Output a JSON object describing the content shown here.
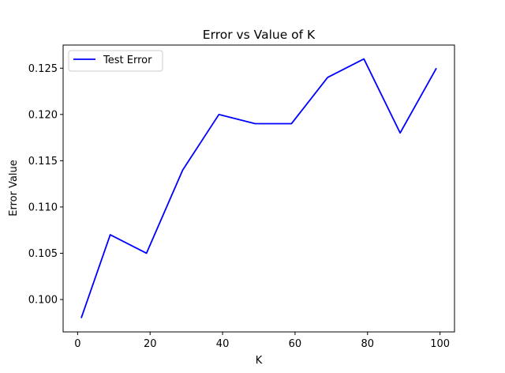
{
  "chart_data": {
    "type": "line",
    "title": "Error vs Value of K",
    "xlabel": "K",
    "ylabel": "Error Value",
    "xlim": [
      -4,
      104
    ],
    "ylim": [
      0.0965,
      0.1275
    ],
    "xticks": [
      0,
      20,
      40,
      60,
      80,
      100
    ],
    "yticks": [
      0.1,
      0.105,
      0.11,
      0.115,
      0.12,
      0.125
    ],
    "ytick_labels": [
      "0.100",
      "0.105",
      "0.110",
      "0.115",
      "0.120",
      "0.125"
    ],
    "grid": false,
    "legend": {
      "position": "top-left"
    },
    "series": [
      {
        "name": "Test Error",
        "color": "#0000ff",
        "x": [
          1,
          9,
          19,
          29,
          39,
          49,
          59,
          69,
          79,
          89,
          99
        ],
        "y": [
          0.098,
          0.107,
          0.105,
          0.114,
          0.12,
          0.119,
          0.119,
          0.124,
          0.126,
          0.118,
          0.125
        ]
      }
    ]
  }
}
